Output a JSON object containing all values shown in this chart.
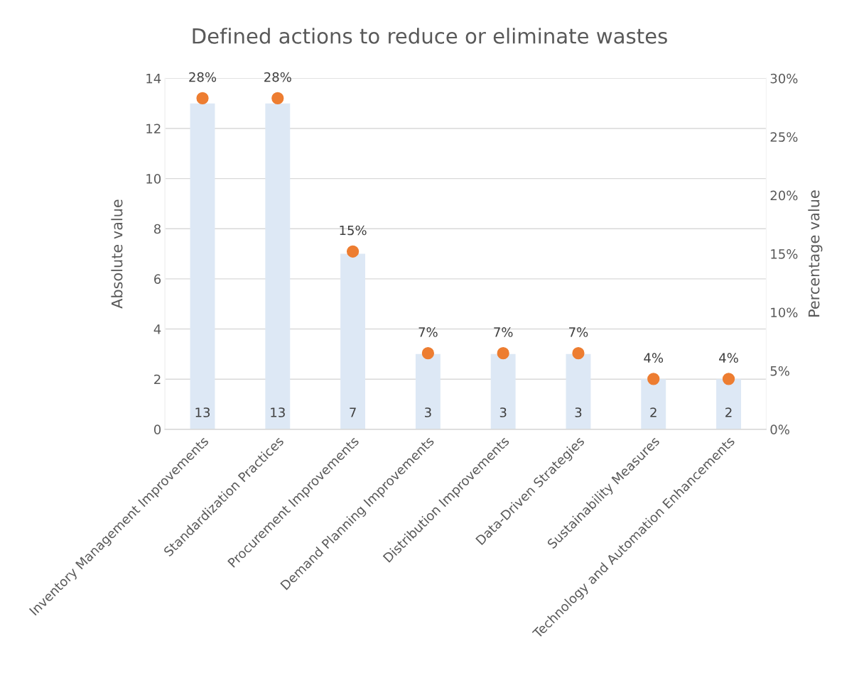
{
  "chart_data": {
    "type": "bar",
    "title": "Defined actions to reduce or eliminate wastes",
    "ylabel": "Absolute value",
    "y2label": "Percentage value",
    "categories": [
      "Inventory Management Improvements",
      "Standardization Practices",
      "Procurement Improvements",
      "Demand Planning Improvements",
      "Distribution Improvements",
      "Data-Driven Strategies",
      "Sustainability Measures",
      "Technology and Automation Enhancements"
    ],
    "series": [
      {
        "color": "#dde8f5",
        "values": [
          13,
          13,
          7,
          3,
          3,
          3,
          2,
          2
        ],
        "data_labels": true
      },
      {
        "type": "scatter",
        "axis": "y2",
        "color": "#ed7d31",
        "marker": "circle",
        "values": [
          28.3,
          28.3,
          15.2,
          6.5,
          6.5,
          6.5,
          4.3,
          4.3
        ],
        "value_labels": [
          "28%",
          "28%",
          "15%",
          "7%",
          "7%",
          "7%",
          "4%",
          "4%"
        ]
      }
    ],
    "ylim": [
      0,
      14
    ],
    "yticks": [
      0,
      2,
      4,
      6,
      8,
      10,
      12,
      14
    ],
    "y2lim": [
      0,
      30
    ],
    "y2ticks": [
      {
        "value": 0,
        "label": "0%"
      },
      {
        "value": 5,
        "label": "5%"
      },
      {
        "value": 10,
        "label": "10%"
      },
      {
        "value": 15,
        "label": "15%"
      },
      {
        "value": 20,
        "label": "20%"
      },
      {
        "value": 25,
        "label": "25%"
      },
      {
        "value": 30,
        "label": "30%"
      }
    ],
    "grid": "y"
  }
}
